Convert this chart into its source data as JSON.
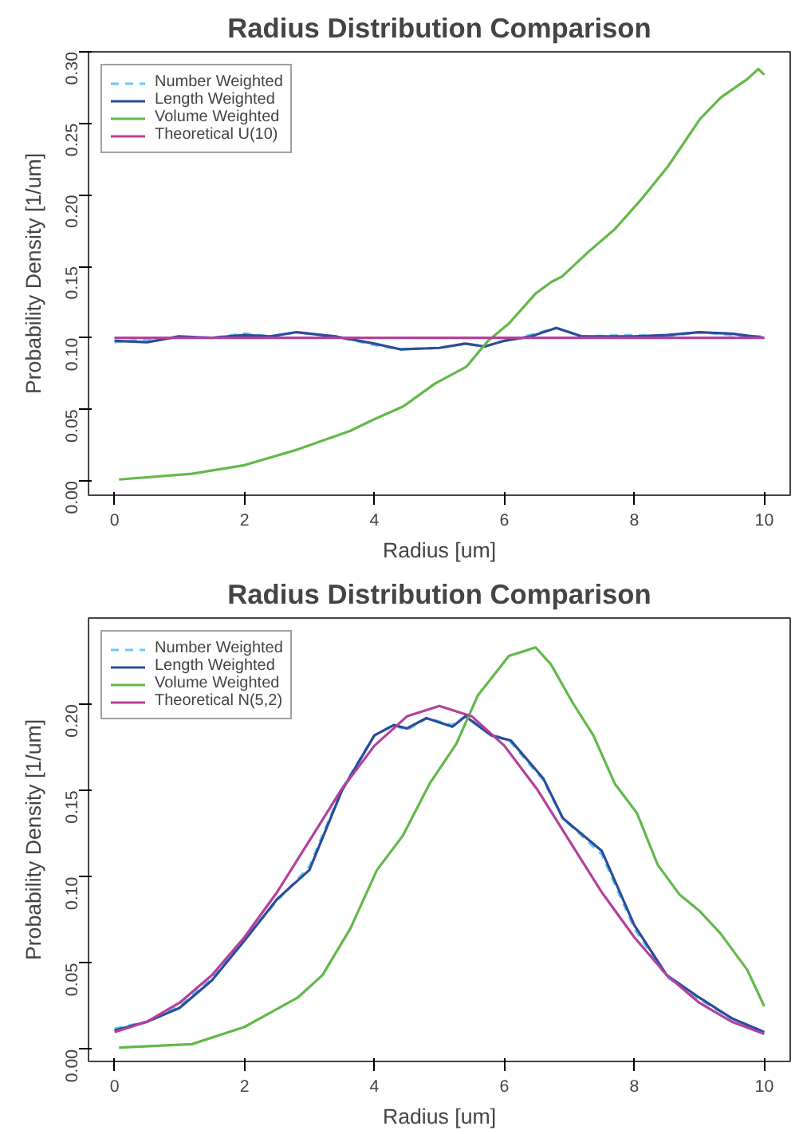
{
  "chart_data": [
    {
      "type": "line",
      "title": "Radius Distribution Comparison",
      "xlabel": "Radius [um]",
      "ylabel": "Probability Density [1/um]",
      "xlim": [
        -0.4,
        10.4
      ],
      "ylim": [
        -0.01,
        0.3
      ],
      "xticks": [
        0,
        2,
        4,
        6,
        8,
        10
      ],
      "yticks": [
        {
          "value": 0,
          "label": "0.00"
        },
        {
          "value": 0.05,
          "label": "0.05"
        },
        {
          "value": 0.1,
          "label": "0.10"
        },
        {
          "value": 0.15,
          "label": "0.15"
        },
        {
          "value": 0.2,
          "label": "0.20"
        },
        {
          "value": 0.25,
          "label": "0.25"
        },
        {
          "value": 0.3,
          "label": "0.30"
        }
      ],
      "grid": false,
      "legend": "top left",
      "series": [
        {
          "name": "Number Weighted",
          "color": "#66ccee",
          "line_style": "dashed",
          "x": [
            0,
            0.5,
            1,
            1.5,
            2,
            2.4,
            2.8,
            3.4,
            4,
            4.4,
            5,
            5.4,
            5.7,
            6,
            6.4,
            6.8,
            7.2,
            8,
            8.5,
            9,
            9.5,
            10
          ],
          "values": [
            0.097,
            0.099,
            0.101,
            0.1,
            0.103,
            0.101,
            0.104,
            0.101,
            0.095,
            0.092,
            0.093,
            0.096,
            0.094,
            0.098,
            0.102,
            0.107,
            0.101,
            0.102,
            0.101,
            0.104,
            0.102,
            0.101
          ]
        },
        {
          "name": "Length Weighted",
          "color": "#2b4c9b",
          "x": [
            0,
            0.5,
            1,
            1.5,
            2,
            2.4,
            2.8,
            3.4,
            4,
            4.4,
            5,
            5.4,
            5.7,
            6,
            6.4,
            6.8,
            7.2,
            8,
            8.5,
            9,
            9.5,
            10
          ],
          "values": [
            0.098,
            0.097,
            0.101,
            0.1,
            0.102,
            0.101,
            0.104,
            0.101,
            0.096,
            0.092,
            0.093,
            0.096,
            0.094,
            0.098,
            0.101,
            0.107,
            0.101,
            0.101,
            0.102,
            0.104,
            0.103,
            0.1
          ]
        },
        {
          "name": "Volume Weighted",
          "color": "#62b94a",
          "x": [
            0.07,
            1.19,
            2,
            2.82,
            3.63,
            3.99,
            4.44,
            4.93,
            5.42,
            5.75,
            6.07,
            6.48,
            6.72,
            6.89,
            7.29,
            7.7,
            8.11,
            8.52,
            9.01,
            9.33,
            9.74,
            9.91,
            10
          ],
          "values": [
            0.001,
            0.005,
            0.011,
            0.022,
            0.035,
            0.043,
            0.052,
            0.068,
            0.08,
            0.098,
            0.11,
            0.131,
            0.139,
            0.143,
            0.16,
            0.176,
            0.197,
            0.22,
            0.253,
            0.268,
            0.281,
            0.288,
            0.284
          ]
        },
        {
          "name": "Theoretical U(10)",
          "color": "#b5409b",
          "x": [
            0,
            10
          ],
          "values": [
            0.1,
            0.1
          ]
        }
      ]
    },
    {
      "type": "line",
      "title": "Radius Distribution Comparison",
      "xlabel": "Radius [um]",
      "ylabel": "Probability Density [1/um]",
      "xlim": [
        -0.4,
        10.4
      ],
      "ylim": [
        -0.007,
        0.25
      ],
      "xticks": [
        0,
        2,
        4,
        6,
        8,
        10
      ],
      "yticks": [
        {
          "value": 0,
          "label": "0.00"
        },
        {
          "value": 0.05,
          "label": "0.05"
        },
        {
          "value": 0.1,
          "label": "0.10"
        },
        {
          "value": 0.15,
          "label": "0.15"
        },
        {
          "value": 0.2,
          "label": "0.20"
        }
      ],
      "grid": false,
      "legend": "top left",
      "series": [
        {
          "name": "Number Weighted",
          "color": "#66ccee",
          "line_style": "dashed",
          "x": [
            0,
            0.5,
            1,
            1.5,
            2,
            2.5,
            3,
            3.5,
            4,
            4.3,
            4.5,
            4.8,
            5.2,
            5.4,
            5.8,
            6.1,
            6.6,
            6.9,
            7.5,
            8,
            8.5,
            9,
            9.5,
            10
          ],
          "values": [
            0.012,
            0.016,
            0.025,
            0.041,
            0.064,
            0.086,
            0.106,
            0.151,
            0.182,
            0.188,
            0.185,
            0.192,
            0.188,
            0.193,
            0.183,
            0.178,
            0.156,
            0.134,
            0.113,
            0.07,
            0.042,
            0.029,
            0.018,
            0.01
          ]
        },
        {
          "name": "Length Weighted",
          "color": "#2b4c9b",
          "x": [
            0,
            0.5,
            1,
            1.5,
            2,
            2.5,
            3,
            3.5,
            4,
            4.3,
            4.5,
            4.8,
            5.2,
            5.4,
            5.8,
            6.1,
            6.6,
            6.9,
            7.5,
            8,
            8.5,
            9,
            9.5,
            10
          ],
          "values": [
            0.011,
            0.016,
            0.024,
            0.04,
            0.063,
            0.087,
            0.104,
            0.15,
            0.182,
            0.188,
            0.186,
            0.192,
            0.187,
            0.193,
            0.182,
            0.179,
            0.157,
            0.134,
            0.115,
            0.072,
            0.043,
            0.03,
            0.018,
            0.01
          ]
        },
        {
          "name": "Volume Weighted",
          "color": "#62b94a",
          "x": [
            0.07,
            1.19,
            2,
            2.82,
            3.2,
            3.63,
            4.04,
            4.44,
            4.85,
            5.26,
            5.59,
            6.07,
            6.32,
            6.48,
            6.72,
            7.05,
            7.37,
            7.7,
            8.04,
            8.36,
            8.69,
            9.01,
            9.33,
            9.74,
            10
          ],
          "values": [
            0.001,
            0.003,
            0.013,
            0.03,
            0.043,
            0.07,
            0.104,
            0.124,
            0.154,
            0.177,
            0.205,
            0.228,
            0.231,
            0.233,
            0.223,
            0.201,
            0.182,
            0.154,
            0.137,
            0.107,
            0.09,
            0.08,
            0.067,
            0.046,
            0.025
          ]
        },
        {
          "name": "Theoretical N(5,2)",
          "color": "#b5409b",
          "x": [
            0,
            0.5,
            1,
            1.5,
            2,
            2.5,
            3,
            3.5,
            4,
            4.5,
            5,
            5.5,
            6,
            6.5,
            7,
            7.5,
            8,
            8.5,
            9,
            9.5,
            10
          ],
          "values": [
            0.01,
            0.016,
            0.027,
            0.043,
            0.065,
            0.091,
            0.121,
            0.151,
            0.176,
            0.193,
            0.199,
            0.193,
            0.176,
            0.151,
            0.121,
            0.091,
            0.065,
            0.043,
            0.027,
            0.016,
            0.009
          ]
        }
      ]
    }
  ]
}
